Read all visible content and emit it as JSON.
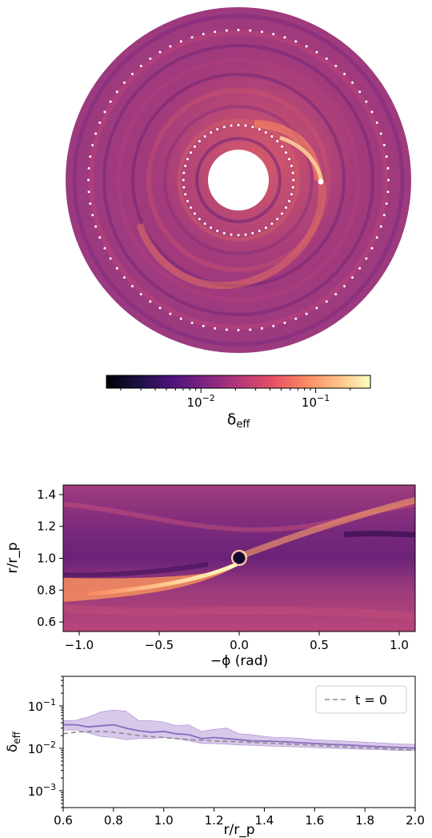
{
  "chart_data": [
    {
      "type": "heatmap",
      "name": "disk map",
      "colormap": "magma",
      "colorbar": {
        "scale": "log",
        "range": [
          0.0015,
          0.3
        ],
        "tick_values": [
          0.01,
          0.1
        ],
        "tick_labels": [
          {
            "base": "10",
            "exp": "−2"
          },
          {
            "base": "10",
            "exp": "−1"
          }
        ],
        "label": {
          "main": "δ",
          "sub": "eff"
        }
      },
      "inner_dotted_circle_r_over_rp": 0.55,
      "outer_dotted_circle_r_over_rp": 1.5,
      "spiral_arm": "bright arm from planet at r/r_p = 1 wrapping inward"
    },
    {
      "type": "heatmap",
      "name": "zoom around planet",
      "colormap": "magma",
      "xlabel": "−ϕ (rad)",
      "ylabel": "r/r_p",
      "xlim": [
        -1.1,
        1.1
      ],
      "ylim": [
        0.54,
        1.46
      ],
      "xticks": [
        -1.0,
        -0.5,
        0.0,
        0.5,
        1.0
      ],
      "xtick_labels": [
        "−1.0",
        "−0.5",
        "0.0",
        "0.5",
        "1.0"
      ],
      "yticks": [
        0.6,
        0.8,
        1.0,
        1.2,
        1.4
      ],
      "ytick_labels": [
        "0.6",
        "0.8",
        "1.0",
        "1.2",
        "1.4"
      ],
      "planet": {
        "x": 0.0,
        "y": 0.99
      }
    },
    {
      "type": "line",
      "name": "radial profile",
      "xlabel": "r/r_p",
      "ylabel": {
        "main": "δ",
        "sub": "eff"
      },
      "xlim": [
        0.6,
        2.0
      ],
      "ylim": [
        0.0004,
        0.5
      ],
      "yscale": "log",
      "xticks": [
        0.6,
        0.8,
        1.0,
        1.2,
        1.4,
        1.6,
        1.8,
        2.0
      ],
      "xtick_labels": [
        "0.6",
        "0.8",
        "1.0",
        "1.2",
        "1.4",
        "1.6",
        "1.8",
        "2.0"
      ],
      "yticks": [
        0.001,
        0.01,
        0.1
      ],
      "ytick_labels": [
        {
          "base": "10",
          "exp": "−3"
        },
        {
          "base": "10",
          "exp": "−2"
        },
        {
          "base": "10",
          "exp": "−1"
        }
      ],
      "legend": {
        "placement": "top-right",
        "entries": [
          "t = 0"
        ]
      },
      "x": [
        0.6,
        0.65,
        0.7,
        0.75,
        0.8,
        0.85,
        0.9,
        0.95,
        1.0,
        1.05,
        1.1,
        1.15,
        1.2,
        1.25,
        1.3,
        1.35,
        1.4,
        1.45,
        1.5,
        1.55,
        1.6,
        1.65,
        1.7,
        1.75,
        1.8,
        1.85,
        1.9,
        1.95,
        2.0
      ],
      "series": [
        {
          "name": "t = 0",
          "style": "dashed",
          "color": "#8a8a8a",
          "values": [
            0.022,
            0.024,
            0.025,
            0.025,
            0.024,
            0.022,
            0.02,
            0.019,
            0.018,
            0.017,
            0.016,
            0.0155,
            0.015,
            0.0146,
            0.0142,
            0.0138,
            0.0134,
            0.013,
            0.0126,
            0.0122,
            0.0118,
            0.0114,
            0.011,
            0.0106,
            0.0103,
            0.01,
            0.0097,
            0.0094,
            0.0091
          ]
        },
        {
          "style": "solid",
          "color": "#8a6bbd",
          "values": [
            0.036,
            0.036,
            0.032,
            0.034,
            0.036,
            0.03,
            0.026,
            0.024,
            0.025,
            0.022,
            0.021,
            0.017,
            0.018,
            0.017,
            0.016,
            0.015,
            0.0148,
            0.0145,
            0.014,
            0.0135,
            0.013,
            0.0125,
            0.0122,
            0.0118,
            0.0114,
            0.011,
            0.0107,
            0.0104,
            0.0101
          ],
          "band_low": [
            0.027,
            0.027,
            0.023,
            0.019,
            0.018,
            0.016,
            0.017,
            0.017,
            0.018,
            0.017,
            0.015,
            0.013,
            0.013,
            0.0125,
            0.012,
            0.0118,
            0.0115,
            0.0112,
            0.011,
            0.0107,
            0.0104,
            0.0101,
            0.0099,
            0.0097,
            0.0095,
            0.0093,
            0.0091,
            0.0089,
            0.0088
          ],
          "band_high": [
            0.045,
            0.046,
            0.055,
            0.072,
            0.08,
            0.075,
            0.045,
            0.045,
            0.042,
            0.034,
            0.036,
            0.025,
            0.028,
            0.03,
            0.022,
            0.021,
            0.019,
            0.018,
            0.018,
            0.017,
            0.016,
            0.0155,
            0.015,
            0.0145,
            0.014,
            0.0135,
            0.013,
            0.0127,
            0.0123
          ]
        }
      ]
    }
  ]
}
